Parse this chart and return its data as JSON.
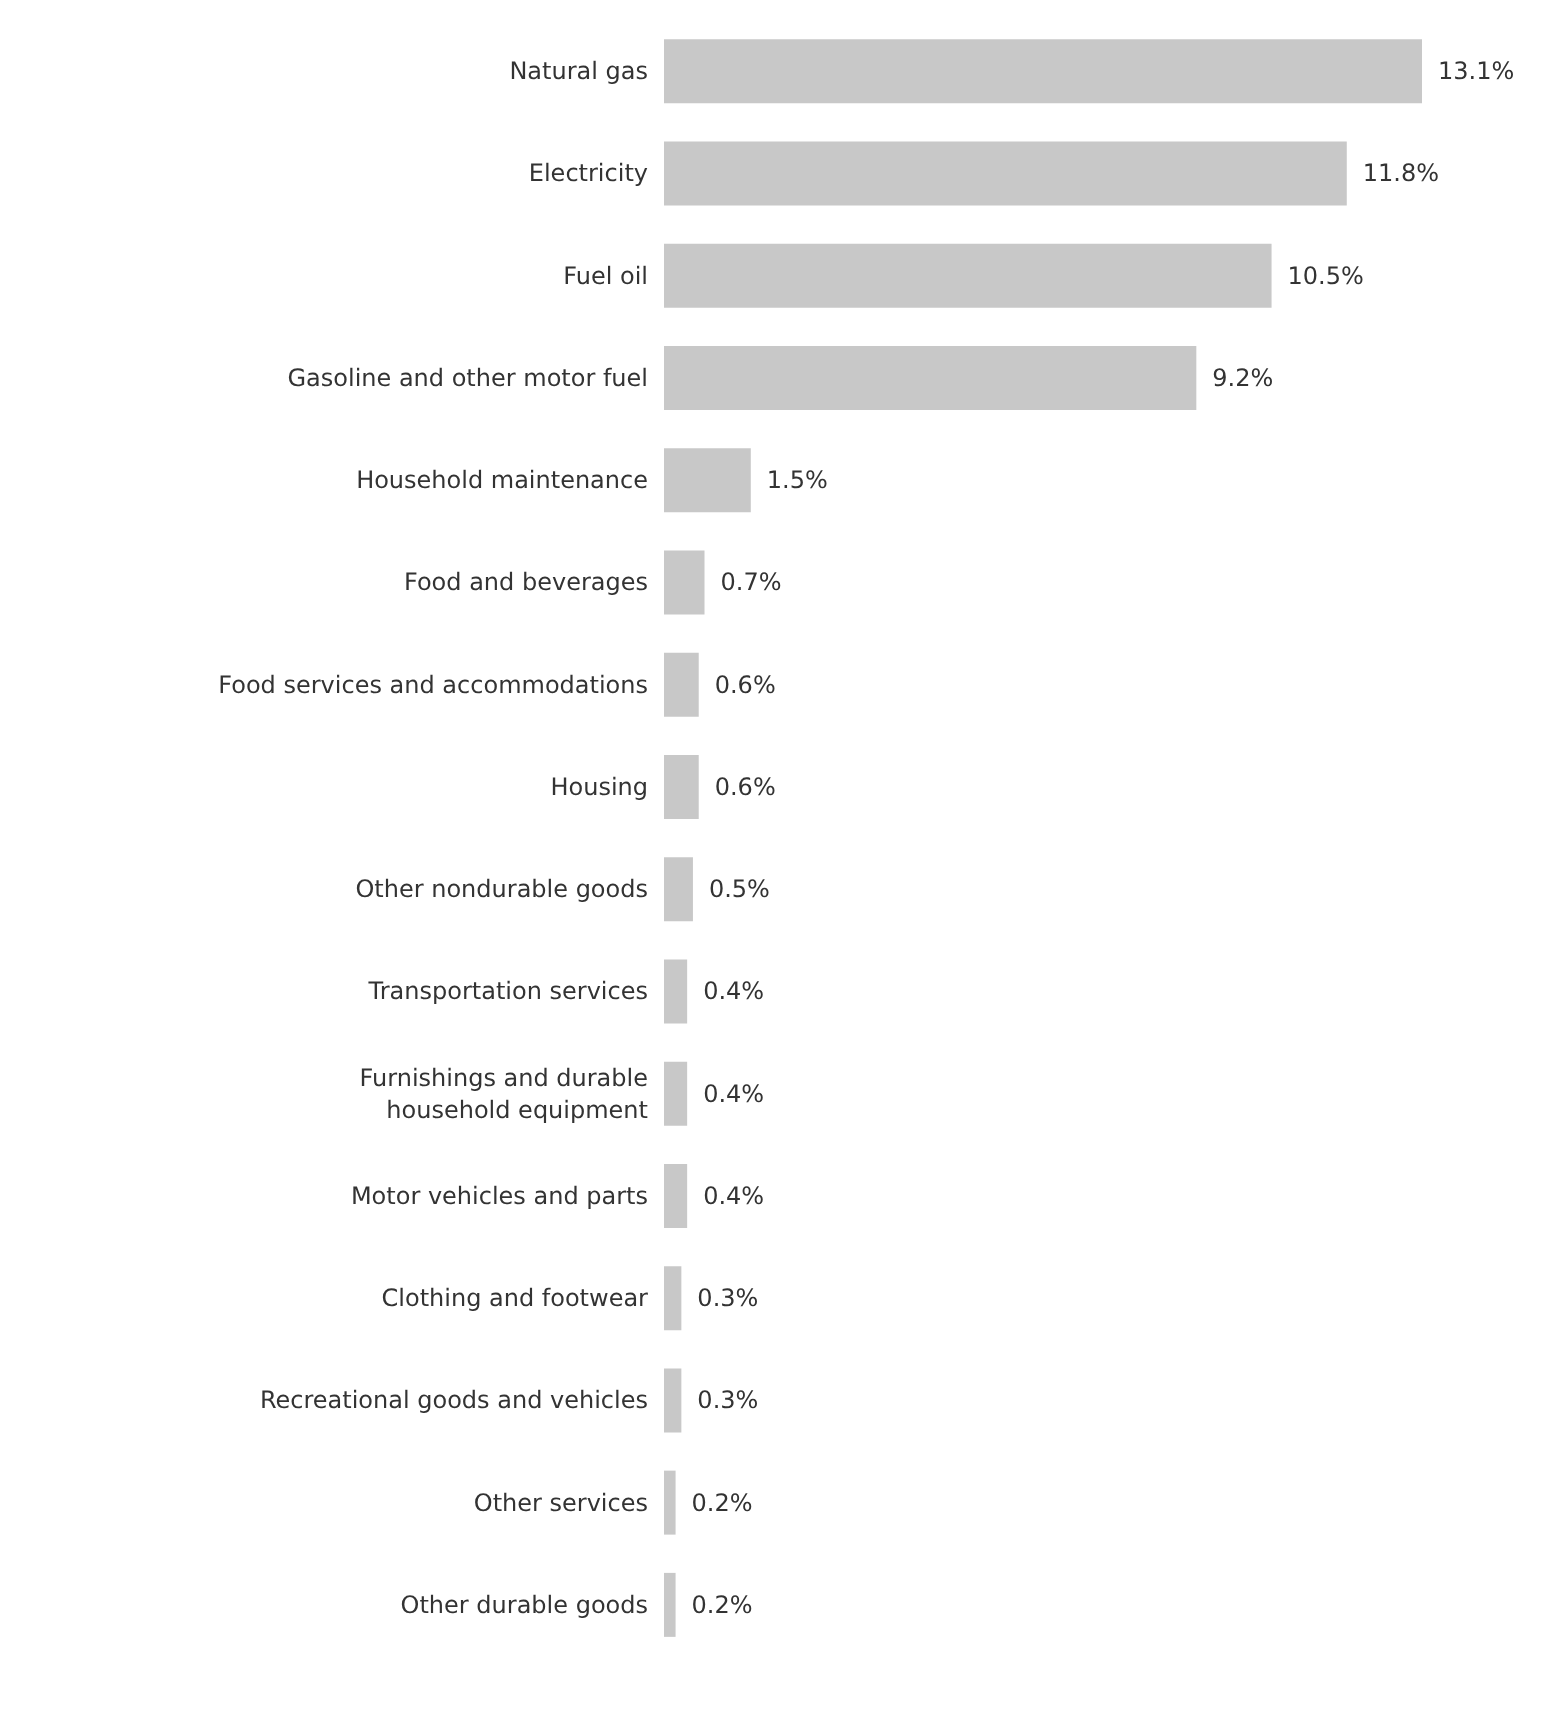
{
  "chart_data": {
    "type": "bar",
    "orientation": "horizontal",
    "color": "#c8c8c8",
    "categories": [
      "Natural gas",
      "Electricity",
      "Fuel oil",
      "Gasoline and other motor fuel",
      "Household maintenance",
      "Food and beverages",
      "Food services and accommodations",
      "Housing",
      "Other nondurable goods",
      "Transportation services",
      "Furnishings and durable\nhousehold equipment",
      "Motor vehicles and parts",
      "Clothing and footwear",
      "Recreational goods and vehicles",
      "Other services",
      "Other durable goods"
    ],
    "values": [
      13.1,
      11.8,
      10.5,
      9.2,
      1.5,
      0.7,
      0.6,
      0.6,
      0.5,
      0.4,
      0.4,
      0.4,
      0.3,
      0.3,
      0.2,
      0.2
    ],
    "value_labels": [
      "13.1%",
      "11.8%",
      "10.5%",
      "9.2%",
      "1.5%",
      "0.7%",
      "0.6%",
      "0.6%",
      "0.5%",
      "0.4%",
      "0.4%",
      "0.4%",
      "0.3%",
      "0.3%",
      "0.2%",
      "0.2%"
    ]
  }
}
